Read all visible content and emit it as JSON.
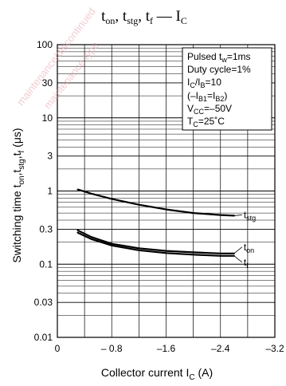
{
  "chart_data": {
    "type": "line",
    "title": "t_on, t_stg, t_f — I_C",
    "xlabel": "Collector current I_C (A)",
    "ylabel": "Switching time t_on,t_stg,t_f (μs)",
    "x_ticks": [
      "0",
      "– 0.8",
      "–1.6",
      "–2.4",
      "–3.2"
    ],
    "x_tick_values": [
      0,
      -0.8,
      -1.6,
      -2.4,
      -3.2
    ],
    "xlim": [
      0,
      -3.2
    ],
    "y_scale": "log",
    "y_ticks": [
      "100",
      "30",
      "10",
      "3",
      "1",
      "0.3",
      "0.1",
      "0.03",
      "0.01"
    ],
    "y_tick_values": [
      100,
      30,
      10,
      3,
      1,
      0.3,
      0.1,
      0.03,
      0.01
    ],
    "ylim": [
      0.01,
      100
    ],
    "grid": true,
    "legend_position": "top-right",
    "conditions": [
      "Pulsed t_w=1ms",
      "Duty cycle=1%",
      "I_C/I_B=10",
      "(–I_B1=I_B2)",
      "V_CC=–50V",
      "T_C=25˚C"
    ],
    "series": [
      {
        "name": "t_stg",
        "x": [
          -0.3,
          -0.5,
          -0.8,
          -1.2,
          -1.6,
          -2.0,
          -2.4,
          -2.6
        ],
        "y": [
          1.05,
          0.92,
          0.78,
          0.65,
          0.56,
          0.5,
          0.47,
          0.46
        ]
      },
      {
        "name": "t_on",
        "x": [
          -0.3,
          -0.5,
          -0.8,
          -1.2,
          -1.6,
          -2.0,
          -2.4,
          -2.6
        ],
        "y": [
          0.29,
          0.235,
          0.19,
          0.165,
          0.152,
          0.145,
          0.14,
          0.14
        ]
      },
      {
        "name": "t_f",
        "x": [
          -0.3,
          -0.5,
          -0.8,
          -1.2,
          -1.6,
          -2.0,
          -2.4,
          -2.6
        ],
        "y": [
          0.27,
          0.22,
          0.18,
          0.155,
          0.142,
          0.135,
          0.13,
          0.13
        ]
      }
    ]
  },
  "watermark": "maintenance/discontinued  maintenance type"
}
